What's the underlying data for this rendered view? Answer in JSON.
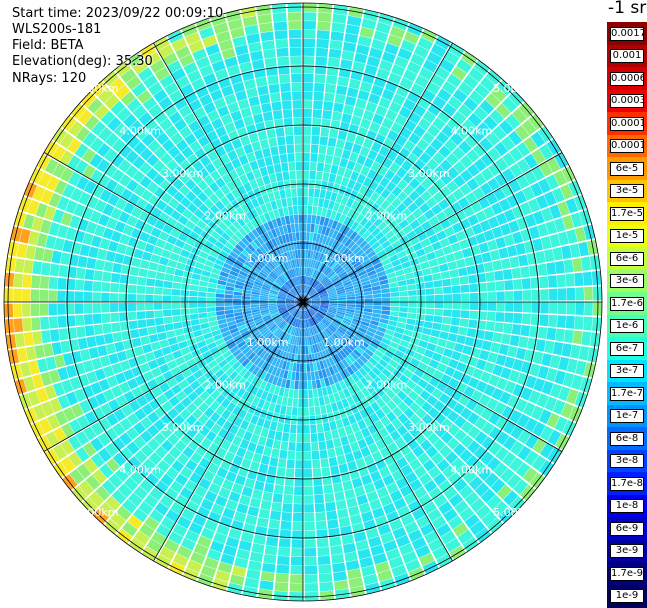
{
  "header": {
    "start_time": "Start time: 2023/09/22 00:09:10",
    "device": "WLS200s-181",
    "field": "Field: BETA",
    "elevation": "Elevation(deg): 35.30",
    "nrays": "NRays: 120"
  },
  "colorbar": {
    "unit": "-1 sr",
    "labels": [
      "0.0017",
      "0.001",
      "0.0006",
      "0.0003",
      "0.00017",
      "0.0001",
      "6e-5",
      "3e-5",
      "1.7e-5",
      "1e-5",
      "6e-6",
      "3e-6",
      "1.7e-6",
      "1e-6",
      "6e-7",
      "3e-7",
      "1.7e-7",
      "1e-7",
      "6e-8",
      "3e-8",
      "1.7e-8",
      "1e-8",
      "6e-9",
      "3e-9",
      "1.7e-9",
      "1e-9"
    ],
    "colors": [
      "#8b0000",
      "#b00000",
      "#d40000",
      "#f00000",
      "#ff3000",
      "#ff6a00",
      "#ff9900",
      "#ffc400",
      "#ffee00",
      "#e9ff14",
      "#c2ff3c",
      "#9aff66",
      "#70ff8e",
      "#48ffb8",
      "#22ffe0",
      "#00e4ff",
      "#00bcff",
      "#0094ff",
      "#006cff",
      "#0044ff",
      "#0020ff",
      "#0000ee",
      "#0000c8",
      "#0000a4",
      "#000080",
      "#000060"
    ]
  },
  "ppi": {
    "range_labels": [
      "1.00km",
      "2.00km",
      "3.00km",
      "4.00km",
      "5.00km"
    ],
    "nrays": 120,
    "palette": {
      "deep_blue": "#1e64e6",
      "blue": "#2896f0",
      "light_blue": "#32b4f5",
      "cyan": "#28e6f0",
      "aqua": "#3cf5dc",
      "green": "#8cf078",
      "yellow_green": "#c8f050",
      "yellow": "#f5eb28",
      "orange": "#ffa01e"
    }
  }
}
